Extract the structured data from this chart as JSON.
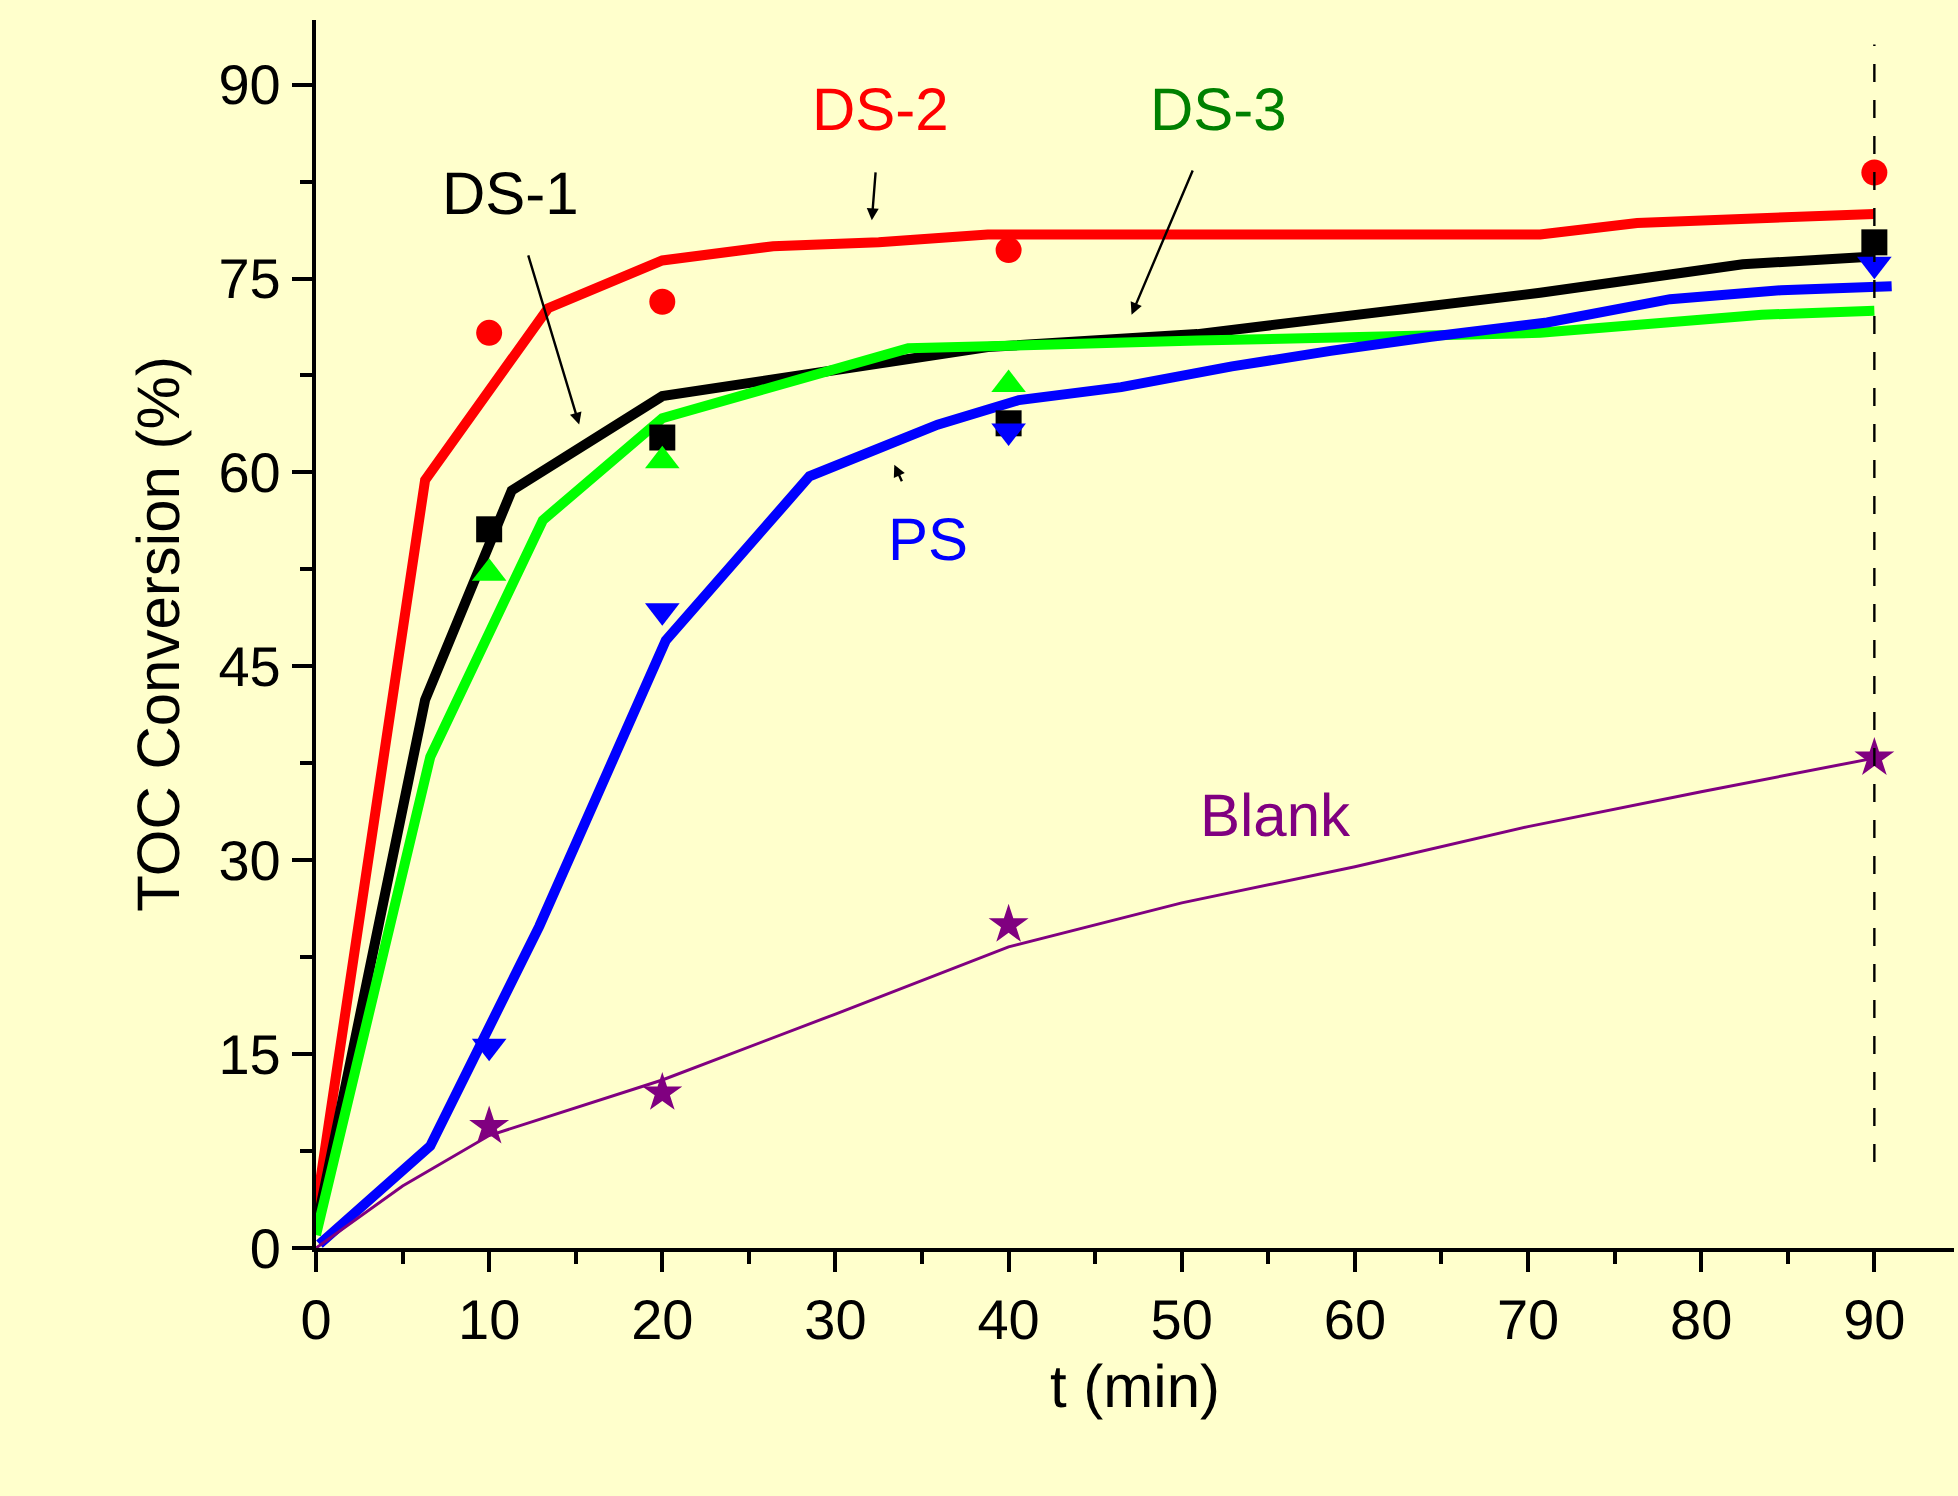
{
  "chart_data": {
    "type": "line",
    "xlabel": "t (min)",
    "ylabel": "TOC Conversion (%)",
    "xlim": [
      0,
      94.6
    ],
    "ylim": [
      0,
      95
    ],
    "xticks": [
      0,
      10,
      20,
      30,
      40,
      50,
      60,
      70,
      80,
      90
    ],
    "yticks": [
      0,
      15,
      30,
      45,
      60,
      75,
      90
    ],
    "grid": false,
    "series": [
      {
        "color": "#ff0000",
        "line_style": "solid",
        "marker": "none",
        "x": [
          0,
          6.3,
          13.4,
          20.0,
          26.4,
          32.5,
          38.8,
          50,
          70.7,
          76.3,
          90
        ],
        "values": [
          3,
          59.4,
          72.7,
          76.4,
          77.5,
          77.8,
          78.4,
          78.4,
          78.4,
          79.3,
          80.0
        ]
      },
      {
        "color": "#000000",
        "line_style": "solid",
        "marker": "none",
        "x": [
          0,
          6.3,
          11.3,
          20.0,
          38.8,
          50.9,
          70.7,
          82.4,
          90
        ],
        "values": [
          1.5,
          42.4,
          58.6,
          65.9,
          69.7,
          70.7,
          73.9,
          76.1,
          76.7
        ]
      },
      {
        "color": "#00ff00",
        "line_style": "solid",
        "marker": "none",
        "x": [
          0,
          6.6,
          13.1,
          20.0,
          34.2,
          50.9,
          70.7,
          83.5,
          90
        ],
        "values": [
          1,
          38.0,
          56.3,
          64.2,
          69.6,
          70.2,
          70.8,
          72.2,
          72.5
        ]
      },
      {
        "color": "#0000ff",
        "line_style": "solid",
        "marker": "none",
        "x": [
          0.2,
          6.6,
          12.9,
          20.2,
          28.5,
          35.9,
          40.6,
          46.5,
          52.9,
          58.6,
          64.4,
          71.1,
          78.2,
          84.6,
          91.0
        ],
        "values": [
          0.3,
          7.9,
          24.9,
          47.0,
          59.7,
          63.7,
          65.6,
          66.6,
          68.2,
          69.4,
          70.5,
          71.6,
          73.4,
          74.1,
          74.4
        ]
      },
      {
        "color": "#800080",
        "line_style": "solid",
        "marker": "none",
        "x": [
          0,
          5,
          10,
          20,
          30,
          40,
          50,
          60,
          70,
          80,
          90
        ],
        "values": [
          0,
          4.8,
          8.7,
          13.0,
          18.1,
          23.3,
          26.7,
          29.5,
          32.6,
          35.3,
          37.9
        ]
      },
      {
        "type": "scatter",
        "color": "#ff0000",
        "marker": "circle",
        "x": [
          10,
          20,
          40,
          90
        ],
        "values": [
          70.8,
          73.2,
          77.2,
          83.2
        ]
      },
      {
        "type": "scatter",
        "color": "#000000",
        "marker": "square",
        "x": [
          10,
          20,
          40,
          90
        ],
        "values": [
          55.6,
          62.7,
          63.8,
          77.8
        ]
      },
      {
        "type": "scatter",
        "color": "#00ff00",
        "marker": "triangle",
        "x": [
          10,
          20,
          40
        ],
        "values": [
          52.2,
          60.9,
          66.8
        ]
      },
      {
        "type": "scatter",
        "color": "#0000ff",
        "marker": "triangle-down",
        "x": [
          10,
          20,
          40,
          90
        ],
        "values": [
          15.6,
          49.3,
          63.2,
          76.1
        ]
      },
      {
        "type": "scatter",
        "color": "#800080",
        "marker": "star",
        "x": [
          10,
          20,
          40,
          90
        ],
        "values": [
          9.4,
          12.0,
          25.0,
          37.9
        ]
      }
    ],
    "ref_lines": [
      {
        "axis": "x",
        "value": 90,
        "color": "#000000",
        "line_style": "dashed"
      }
    ],
    "annotations": [
      "DS-1",
      "DS-2",
      "DS-3",
      "PS",
      "Blank"
    ]
  }
}
